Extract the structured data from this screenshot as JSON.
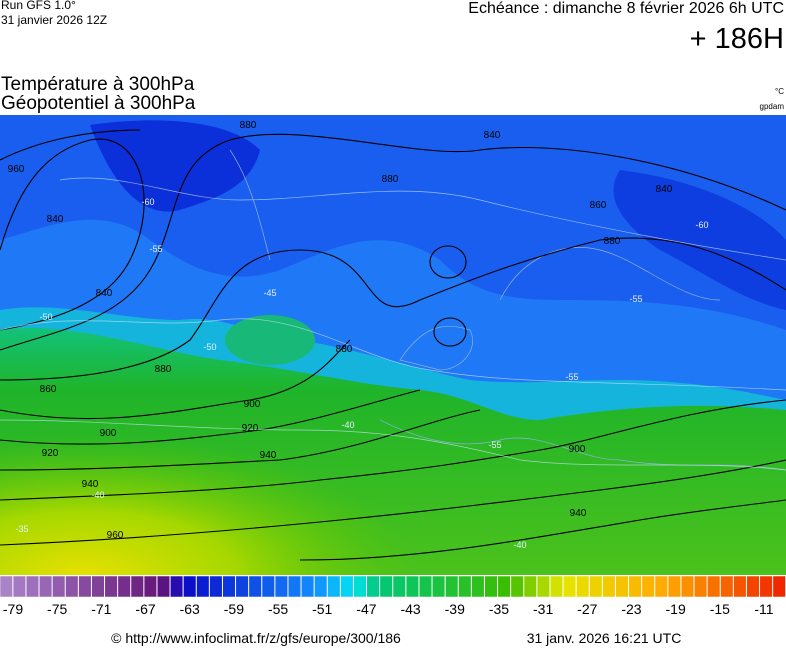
{
  "header": {
    "run": "Run GFS 1.0°",
    "run_date": "31 janvier 2026 12Z",
    "valid": "Echéance : dimanche 8 février 2026 6h UTC",
    "lead": "+ 186H",
    "title_temperature": "Température à 300hPa",
    "title_geopotential": "Géopotentiel à 300hPa",
    "unit_temperature": "°C",
    "unit_geopotential": "gpdam"
  },
  "map": {
    "contour_labels": [
      960,
      840,
      840,
      860,
      880,
      900,
      920,
      940,
      960,
      900,
      920,
      940,
      880,
      880,
      860,
      840,
      880,
      840,
      900,
      940,
      880,
      -60,
      -55,
      -50,
      -45,
      -40,
      -40,
      -55,
      -55,
      -60,
      -35,
      -40,
      -55,
      -50
    ]
  },
  "colorbar": {
    "ticks": [
      -79,
      -75,
      -71,
      -67,
      -63,
      -59,
      -55,
      -51,
      -47,
      -43,
      -39,
      -35,
      -31,
      -27,
      -23,
      -19,
      -15,
      -11
    ]
  },
  "footer": {
    "source": "© http://www.infoclimat.fr/z/gfs/europe/300/186",
    "generated": "31 janv. 2026 16:21 UTC"
  }
}
